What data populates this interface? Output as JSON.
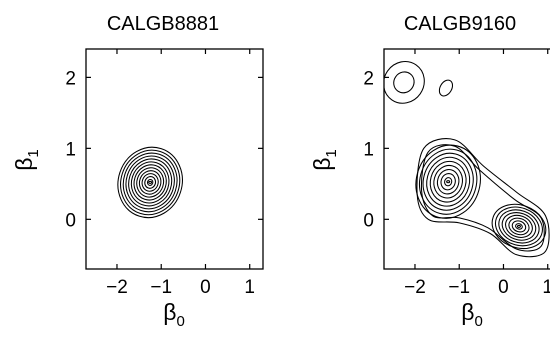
{
  "chart_data": [
    {
      "type": "contour",
      "title": "CALGB8881",
      "xlabel": "β",
      "xlabel_sub": "0",
      "ylabel": "β",
      "ylabel_sub": "1",
      "xlim": [
        -2.7,
        1.3
      ],
      "ylim": [
        -0.7,
        2.4
      ],
      "xticks": [
        {
          "value": -2,
          "label": "−2"
        },
        {
          "value": -1,
          "label": "−1"
        },
        {
          "value": 0,
          "label": "0"
        },
        {
          "value": 1,
          "label": "1"
        }
      ],
      "yticks": [
        {
          "value": 0,
          "label": "0"
        },
        {
          "value": 1,
          "label": "1"
        },
        {
          "value": 2,
          "label": "2"
        }
      ],
      "contour_groups": [
        {
          "center": [
            -1.25,
            0.52
          ],
          "rx": 0.72,
          "ry": 0.5,
          "rotation_deg": 18,
          "levels": 12
        }
      ]
    },
    {
      "type": "contour",
      "title": "CALGB9160",
      "xlabel": "β",
      "xlabel_sub": "0",
      "ylabel": "β",
      "ylabel_sub": "1",
      "xlim": [
        -2.7,
        1.3
      ],
      "ylim": [
        -0.7,
        2.4
      ],
      "xticks": [
        {
          "value": -2,
          "label": "−2"
        },
        {
          "value": -1,
          "label": "−1"
        },
        {
          "value": 0,
          "label": "0"
        },
        {
          "value": 1,
          "label": "1"
        }
      ],
      "yticks": [
        {
          "value": 0,
          "label": "0"
        },
        {
          "value": 1,
          "label": "1"
        },
        {
          "value": 2,
          "label": "2"
        }
      ],
      "contour_groups": [
        {
          "center": [
            -1.25,
            0.53
          ],
          "rx": 0.72,
          "ry": 0.52,
          "rotation_deg": 15,
          "levels": 9
        },
        {
          "center": [
            0.35,
            -0.1
          ],
          "rx": 0.62,
          "ry": 0.3,
          "rotation_deg": 20,
          "levels": 8
        },
        {
          "center": [
            -2.25,
            1.93
          ],
          "rx": 0.45,
          "ry": 0.3,
          "rotation_deg": 35,
          "levels": 2
        },
        {
          "center": [
            -1.3,
            1.85
          ],
          "rx": 0.13,
          "ry": 0.12,
          "rotation_deg": 30,
          "levels": 1
        }
      ],
      "bridge_contours": [
        [
          [
            -1.95,
            0.35
          ],
          [
            -1.8,
            1.0
          ],
          [
            -1.1,
            1.12
          ],
          [
            -0.45,
            0.75
          ],
          [
            0.3,
            0.38
          ],
          [
            0.95,
            0.05
          ],
          [
            0.95,
            -0.45
          ],
          [
            0.3,
            -0.5
          ],
          [
            -0.3,
            -0.2
          ],
          [
            -1.0,
            -0.05
          ],
          [
            -1.7,
            0.0
          ]
        ],
        [
          [
            -1.85,
            0.4
          ],
          [
            -1.7,
            0.95
          ],
          [
            -1.1,
            1.03
          ],
          [
            -0.55,
            0.7
          ],
          [
            0.25,
            0.28
          ],
          [
            0.85,
            0.02
          ],
          [
            0.85,
            -0.38
          ],
          [
            0.3,
            -0.42
          ],
          [
            -0.35,
            -0.12
          ],
          [
            -1.0,
            0.02
          ],
          [
            -1.6,
            0.05
          ]
        ]
      ]
    }
  ]
}
